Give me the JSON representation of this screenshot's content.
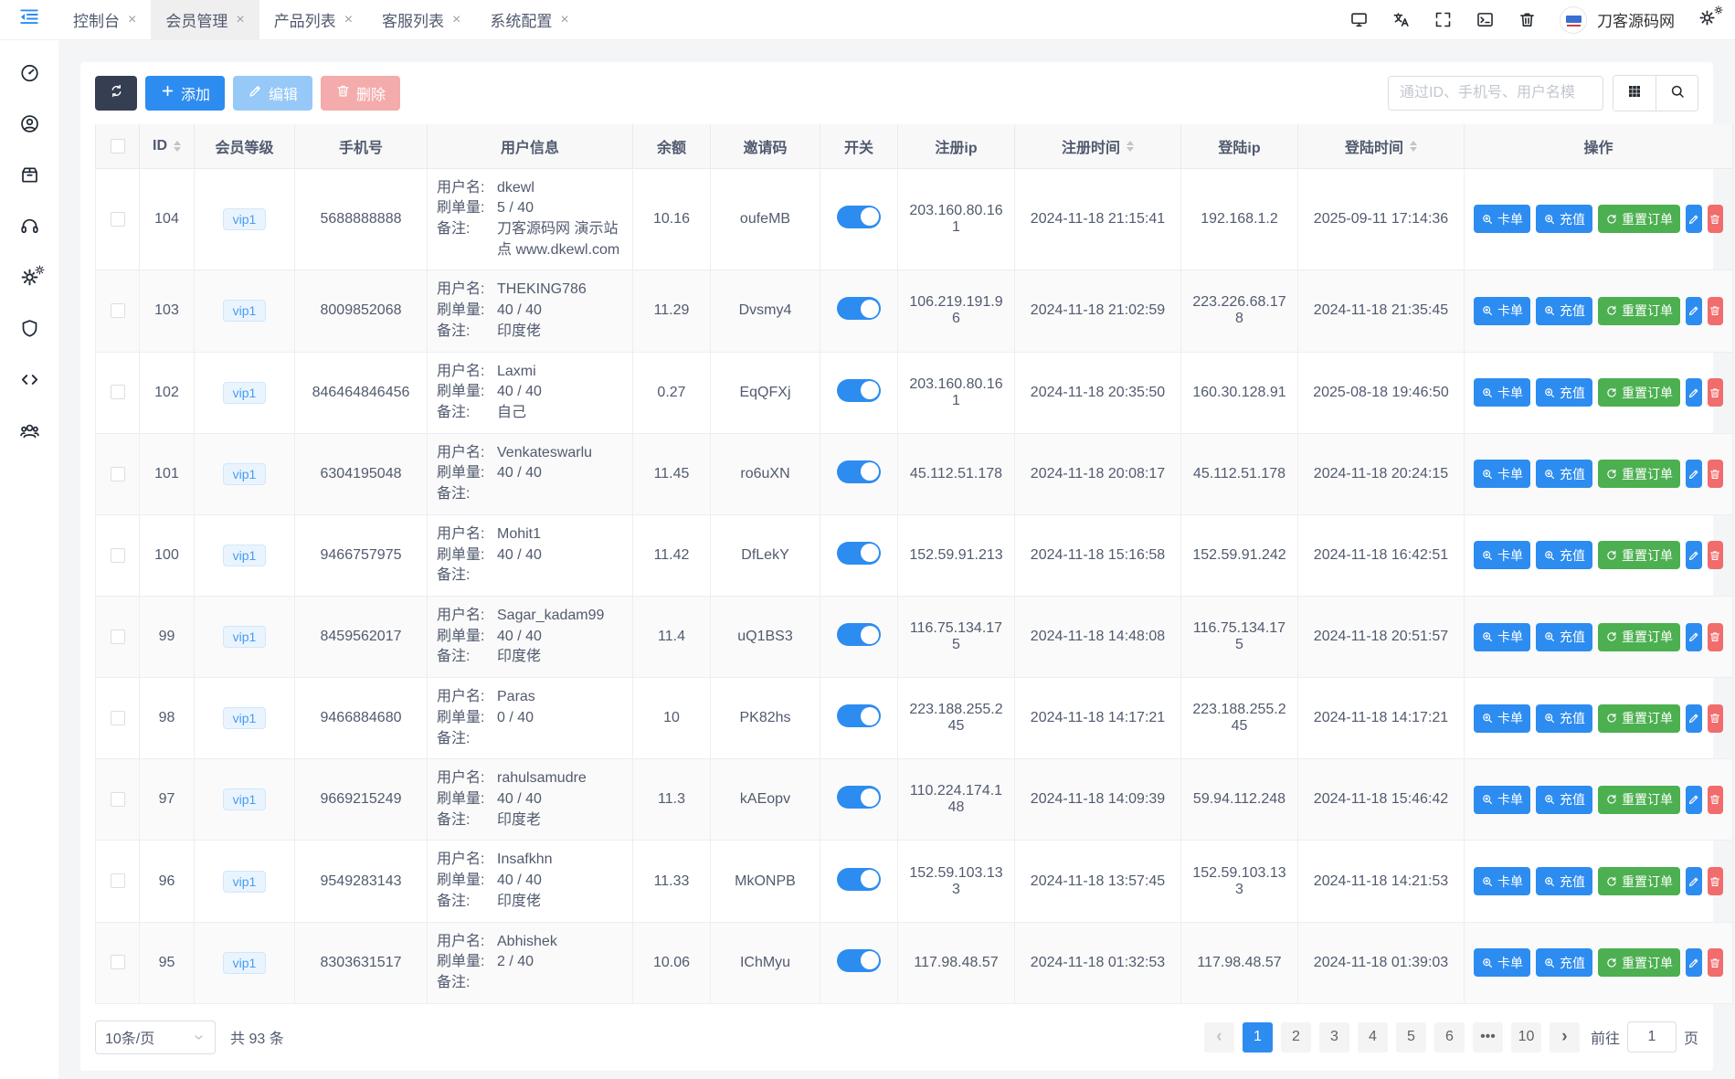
{
  "topbar": {
    "tabs": [
      {
        "label": "控制台",
        "active": false
      },
      {
        "label": "会员管理",
        "active": true
      },
      {
        "label": "产品列表",
        "active": false
      },
      {
        "label": "客服列表",
        "active": false
      },
      {
        "label": "系统配置",
        "active": false
      }
    ],
    "close_glyph": "×",
    "action_icons": [
      "monitor",
      "translate",
      "fullscreen",
      "terminal",
      "trash"
    ],
    "brand": "刀客源码网"
  },
  "sidebar": {
    "items": [
      {
        "id": "dashboard",
        "icon": "dashboard-icon"
      },
      {
        "id": "members",
        "icon": "user-circle-icon"
      },
      {
        "id": "products",
        "icon": "package-icon"
      },
      {
        "id": "support",
        "icon": "headset-icon"
      },
      {
        "id": "settings",
        "icon": "gears-icon"
      },
      {
        "id": "security",
        "icon": "shield-icon"
      },
      {
        "id": "code",
        "icon": "code-icon"
      },
      {
        "id": "users",
        "icon": "users-icon"
      }
    ]
  },
  "toolbar": {
    "add_label": "添加",
    "edit_label": "编辑",
    "delete_label": "删除",
    "search_placeholder": "通过ID、手机号、用户名模"
  },
  "colors": {
    "primary": "#2d8cf0",
    "success": "#4caf50",
    "danger": "#f16c6c",
    "dark": "#363e52"
  },
  "table": {
    "columns": [
      {
        "type": "checkbox",
        "label": "",
        "key": "checkbox"
      },
      {
        "label": "ID",
        "key": "id",
        "sortable": true
      },
      {
        "label": "会员等级",
        "key": "level"
      },
      {
        "label": "手机号",
        "key": "phone"
      },
      {
        "label": "用户信息",
        "key": "userinfo"
      },
      {
        "label": "余额",
        "key": "balance"
      },
      {
        "label": "邀请码",
        "key": "invite"
      },
      {
        "label": "开关",
        "key": "switch"
      },
      {
        "label": "注册ip",
        "key": "reg-ip"
      },
      {
        "label": "注册时间",
        "key": "reg-time",
        "sortable": true
      },
      {
        "label": "登陆ip",
        "key": "login-ip"
      },
      {
        "label": "登陆时间",
        "key": "login-time",
        "sortable": true
      },
      {
        "label": "操作",
        "key": "actions"
      }
    ],
    "user_labels": {
      "username": "用户名:",
      "orders": "刷单量:",
      "remark": "备注:"
    },
    "actions": {
      "card": "卡单",
      "recharge": "充值",
      "reset": "重置订单"
    },
    "rows": [
      {
        "id": "104",
        "level": "vip1",
        "phone": "5688888888",
        "username": "dkewl",
        "orders": "5 / 40",
        "remark": "刀客源码网 演示站点 www.dkewl.com",
        "balance": "10.16",
        "invite": "oufeMB",
        "on": true,
        "reg_ip": "203.160.80.161",
        "reg_time": "2024-11-18 21:15:41",
        "login_ip": "192.168.1.2",
        "login_time": "2025-09-11 17:14:36"
      },
      {
        "id": "103",
        "level": "vip1",
        "phone": "8009852068",
        "username": "THEKING786",
        "orders": "40 / 40",
        "remark": "印度佬",
        "balance": "11.29",
        "invite": "Dvsmy4",
        "on": true,
        "reg_ip": "106.219.191.96",
        "reg_time": "2024-11-18 21:02:59",
        "login_ip": "223.226.68.178",
        "login_time": "2024-11-18 21:35:45"
      },
      {
        "id": "102",
        "level": "vip1",
        "phone": "846464846456",
        "username": "Laxmi",
        "orders": "40 / 40",
        "remark": "自己",
        "balance": "0.27",
        "invite": "EqQFXj",
        "on": true,
        "reg_ip": "203.160.80.161",
        "reg_time": "2024-11-18 20:35:50",
        "login_ip": "160.30.128.91",
        "login_time": "2025-08-18 19:46:50"
      },
      {
        "id": "101",
        "level": "vip1",
        "phone": "6304195048",
        "username": "Venkateswarlu",
        "orders": "40 / 40",
        "remark": "",
        "balance": "11.45",
        "invite": "ro6uXN",
        "on": true,
        "reg_ip": "45.112.51.178",
        "reg_time": "2024-11-18 20:08:17",
        "login_ip": "45.112.51.178",
        "login_time": "2024-11-18 20:24:15"
      },
      {
        "id": "100",
        "level": "vip1",
        "phone": "9466757975",
        "username": "Mohit1",
        "orders": "40 / 40",
        "remark": "",
        "balance": "11.42",
        "invite": "DfLekY",
        "on": true,
        "reg_ip": "152.59.91.213",
        "reg_time": "2024-11-18 15:16:58",
        "login_ip": "152.59.91.242",
        "login_time": "2024-11-18 16:42:51"
      },
      {
        "id": "99",
        "level": "vip1",
        "phone": "8459562017",
        "username": "Sagar_kadam99",
        "orders": "40 / 40",
        "remark": "印度佬",
        "balance": "11.4",
        "invite": "uQ1BS3",
        "on": true,
        "reg_ip": "116.75.134.175",
        "reg_time": "2024-11-18 14:48:08",
        "login_ip": "116.75.134.175",
        "login_time": "2024-11-18 20:51:57"
      },
      {
        "id": "98",
        "level": "vip1",
        "phone": "9466884680",
        "username": "Paras",
        "orders": "0 / 40",
        "remark": "",
        "balance": "10",
        "invite": "PK82hs",
        "on": true,
        "reg_ip": "223.188.255.245",
        "reg_time": "2024-11-18 14:17:21",
        "login_ip": "223.188.255.245",
        "login_time": "2024-11-18 14:17:21"
      },
      {
        "id": "97",
        "level": "vip1",
        "phone": "9669215249",
        "username": "rahulsamudre",
        "orders": "40 / 40",
        "remark": "印度老",
        "balance": "11.3",
        "invite": "kAEopv",
        "on": true,
        "reg_ip": "110.224.174.148",
        "reg_time": "2024-11-18 14:09:39",
        "login_ip": "59.94.112.248",
        "login_time": "2024-11-18 15:46:42"
      },
      {
        "id": "96",
        "level": "vip1",
        "phone": "9549283143",
        "username": "Insafkhn",
        "orders": "40 / 40",
        "remark": "印度佬",
        "balance": "11.33",
        "invite": "MkONPB",
        "on": true,
        "reg_ip": "152.59.103.133",
        "reg_time": "2024-11-18 13:57:45",
        "login_ip": "152.59.103.133",
        "login_time": "2024-11-18 14:21:53"
      },
      {
        "id": "95",
        "level": "vip1",
        "phone": "8303631517",
        "username": "Abhishek",
        "orders": "2 / 40",
        "remark": "",
        "balance": "10.06",
        "invite": "IChMyu",
        "on": true,
        "reg_ip": "117.98.48.57",
        "reg_time": "2024-11-18 01:32:53",
        "login_ip": "117.98.48.57",
        "login_time": "2024-11-18 01:39:03"
      }
    ]
  },
  "pagination": {
    "page_size": "10条/页",
    "total": "共 93 条",
    "prev_glyph": "‹",
    "next_glyph": "›",
    "pages": [
      "1",
      "2",
      "3",
      "4",
      "5",
      "6",
      "•••",
      "10"
    ],
    "active_page": "1",
    "more_glyph": "•••",
    "goto_label": "前往",
    "goto_value": "1",
    "page_label": "页"
  }
}
